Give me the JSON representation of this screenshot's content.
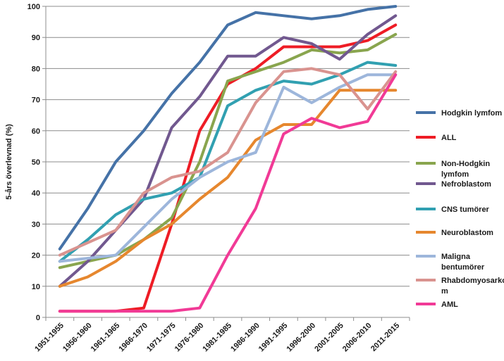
{
  "chart_data": {
    "type": "line",
    "title": "",
    "xlabel": "",
    "ylabel": "5-års överlevnad (%)",
    "ylim": [
      0,
      100
    ],
    "yticks": [
      0,
      10,
      20,
      30,
      40,
      50,
      60,
      70,
      80,
      90,
      100
    ],
    "grid": "horizontal",
    "legend_position": "right",
    "categories": [
      "1951-1955",
      "1956-1960",
      "1961-1965",
      "1966-1970",
      "1971-1975",
      "1976-1980",
      "1981-1985",
      "1986-1990",
      "1991-1995",
      "1996-2000",
      "2001-2005",
      "2006-2010",
      "2011-2015"
    ],
    "series": [
      {
        "name": "Hodgkin lymfom",
        "legend_lines": [
          "Hodgkin lymfom"
        ],
        "color": "#4572a7",
        "values": [
          22,
          35,
          50,
          60,
          72,
          82,
          94,
          98,
          97,
          96,
          97,
          99,
          100
        ]
      },
      {
        "name": "ALL",
        "legend_lines": [
          "ALL"
        ],
        "color": "#ee1c25",
        "values": [
          2,
          2,
          2,
          3,
          30,
          60,
          75,
          80,
          87,
          87,
          87,
          89,
          94
        ]
      },
      {
        "name": "Non-Hodgkin lymfom",
        "legend_lines": [
          "Non-Hodgkin",
          "lymfom"
        ],
        "color": "#89a54e",
        "values": [
          16,
          18,
          20,
          25,
          32,
          50,
          76,
          79,
          82,
          86,
          85,
          86,
          91
        ]
      },
      {
        "name": "Nefroblastom",
        "legend_lines": [
          "Nefroblastom"
        ],
        "color": "#71588f",
        "values": [
          10,
          18,
          28,
          38,
          61,
          71,
          84,
          84,
          90,
          88,
          83,
          91,
          97
        ]
      },
      {
        "name": "CNS tumörer",
        "legend_lines": [
          "CNS tumörer"
        ],
        "color": "#31a0b1",
        "values": [
          18,
          25,
          33,
          38,
          40,
          45,
          68,
          73,
          76,
          75,
          78,
          82,
          81
        ]
      },
      {
        "name": "Neuroblastom",
        "legend_lines": [
          "Neuroblastom"
        ],
        "color": "#e6872e",
        "values": [
          10,
          13,
          18,
          25,
          30,
          38,
          45,
          57,
          62,
          62,
          73,
          73,
          73
        ]
      },
      {
        "name": "Maligna bentumörer",
        "legend_lines": [
          "Maligna",
          "bentumörer"
        ],
        "color": "#9db6db",
        "values": [
          18,
          19,
          20,
          29,
          38,
          45,
          50,
          53,
          74,
          69,
          74,
          78,
          78
        ]
      },
      {
        "name": "Rhabdomyosarkom",
        "legend_lines": [
          "Rhabdomyosarko",
          "m"
        ],
        "color": "#d9938f",
        "values": [
          20,
          24,
          28,
          40,
          45,
          47,
          53,
          69,
          79,
          80,
          78,
          67,
          79
        ]
      },
      {
        "name": "AML",
        "legend_lines": [
          "AML"
        ],
        "color": "#f13a96",
        "values": [
          2,
          2,
          2,
          2,
          2,
          3,
          20,
          35,
          59,
          64,
          61,
          63,
          78
        ]
      }
    ]
  }
}
